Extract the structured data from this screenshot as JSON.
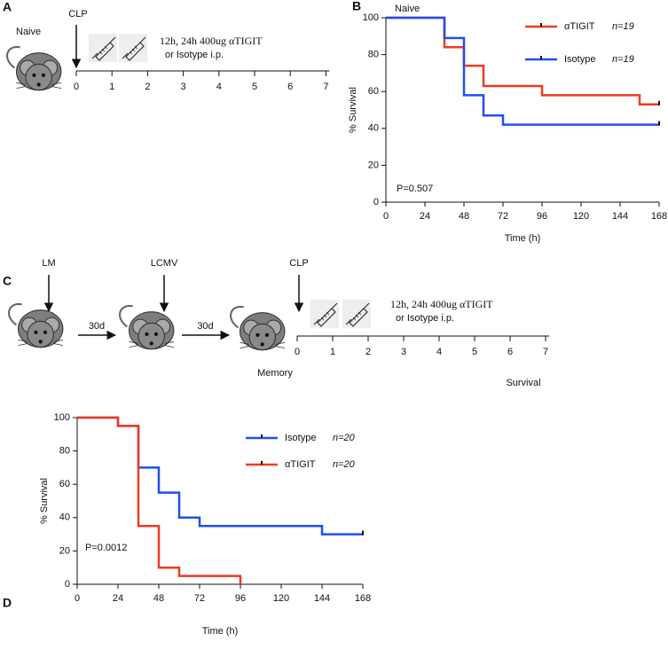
{
  "panels": [
    {
      "letter": "A",
      "group": "Naive",
      "arrows": [
        "CLP"
      ],
      "treatment": [
        "12h, 24h 400ug αTIGIT",
        "or Isotype i.p."
      ],
      "timeline": [
        0,
        1,
        2,
        3,
        4,
        5,
        6,
        7
      ]
    },
    {
      "letter": "C",
      "arrows": [
        "LM",
        "LCMV",
        "CLP"
      ],
      "intervals": [
        "30d",
        "30d"
      ],
      "treatment": [
        "12h, 24h 400ug αTIGIT",
        "or Isotype i.p."
      ],
      "timeline": [
        0,
        1,
        2,
        3,
        4,
        5,
        6,
        7
      ],
      "outcome": "Survival"
    }
  ],
  "chart_data": [
    {
      "type": "step",
      "panel": "B",
      "title": "Naive",
      "x_label": "Time (h)",
      "y_label": "% Survival",
      "annotation": "P=0.507",
      "xlim": [
        0,
        168
      ],
      "xticks": [
        0,
        24,
        48,
        72,
        96,
        120,
        144,
        168
      ],
      "ylim": [
        0,
        100
      ],
      "yticks": [
        0,
        20,
        40,
        60,
        80,
        100
      ],
      "legend": "upper right",
      "series": [
        {
          "name": "αTIGIT",
          "n": "n=19",
          "color": "#f03a1f",
          "censor_mark": true,
          "x": [
            0,
            36,
            48,
            60,
            96,
            156,
            168
          ],
          "values": [
            100,
            84,
            74,
            63,
            58,
            53,
            53
          ]
        },
        {
          "name": "Isotype",
          "n": "n=19",
          "color": "#1f4ff0",
          "censor_mark": true,
          "x": [
            0,
            36,
            48,
            60,
            72,
            168
          ],
          "values": [
            100,
            89,
            58,
            47,
            42,
            42
          ]
        }
      ]
    },
    {
      "type": "step",
      "panel": "D",
      "title": "Memory",
      "x_label": "Time (h)",
      "y_label": "% Survival",
      "annotation": "P=0.0012",
      "xlim": [
        0,
        168
      ],
      "xticks": [
        0,
        24,
        48,
        72,
        96,
        120,
        144,
        168
      ],
      "ylim": [
        0,
        100
      ],
      "yticks": [
        0,
        20,
        40,
        60,
        80,
        100
      ],
      "legend": "upper right",
      "series": [
        {
          "name": "Isotype",
          "n": "n=20",
          "color": "#1f4ff0",
          "censor_mark": true,
          "x": [
            0,
            24,
            36,
            48,
            60,
            72,
            144,
            168
          ],
          "values": [
            100,
            95,
            70,
            55,
            40,
            35,
            30,
            30
          ]
        },
        {
          "name": "αTIGIT",
          "n": "n=20",
          "color": "#f03a1f",
          "censor_mark": false,
          "x": [
            0,
            24,
            36,
            48,
            60,
            96
          ],
          "values": [
            100,
            95,
            35,
            10,
            5,
            0
          ]
        }
      ]
    }
  ]
}
